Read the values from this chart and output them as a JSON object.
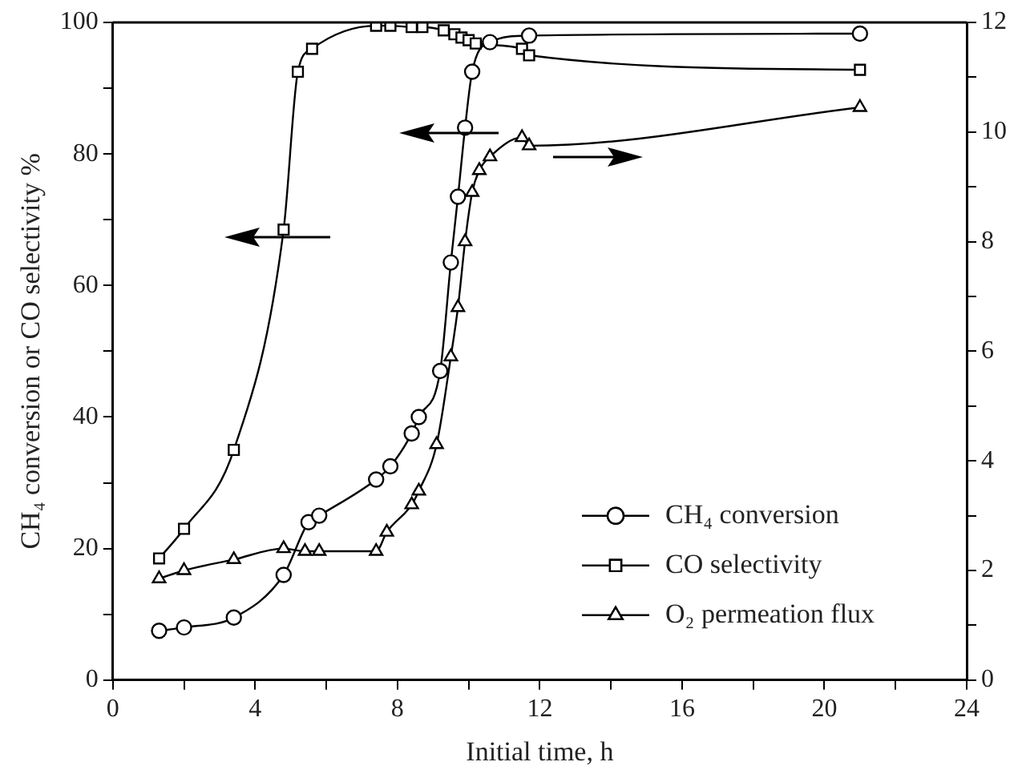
{
  "chart_data": {
    "type": "line",
    "xlabel": "Initial time, h",
    "ylabel": "CH₄ conversion or CO selectivity %",
    "xlim": [
      0,
      24
    ],
    "xticks": [
      0,
      {
        "value": 2,
        "label": null
      },
      4,
      {
        "value": 6,
        "label": null
      },
      8,
      {
        "value": 10,
        "label": null
      },
      12,
      {
        "value": 14,
        "label": null
      },
      16,
      {
        "value": 18,
        "label": null
      },
      20,
      {
        "value": 22,
        "label": null
      },
      24
    ],
    "ylim": [
      0,
      100
    ],
    "yticks": [
      0,
      {
        "value": 10,
        "label": null
      },
      20,
      {
        "value": 30,
        "label": null
      },
      40,
      {
        "value": 50,
        "label": null
      },
      60,
      {
        "value": 70,
        "label": null
      },
      80,
      {
        "value": 90,
        "label": null
      },
      100
    ],
    "y2lim": [
      0,
      12
    ],
    "y2ticks": [
      0,
      {
        "value": 1,
        "label": null
      },
      2,
      {
        "value": 3,
        "label": null
      },
      4,
      {
        "value": 5,
        "label": null
      },
      6,
      {
        "value": 7,
        "label": null
      },
      8,
      {
        "value": 9,
        "label": null
      },
      10,
      {
        "value": 11,
        "label": null
      },
      12
    ],
    "grid": false,
    "legend": "bottom right",
    "series": [
      {
        "name": "CH₄ conversion",
        "color": "#000000",
        "marker": "circle",
        "x": [
          1.3,
          2,
          3.4,
          4.8,
          5.5,
          5.8,
          7.4,
          7.8,
          8.4,
          8.6,
          9.2,
          9.5,
          9.7,
          9.9,
          10.1,
          10.6,
          11.7,
          21
        ],
        "values": [
          7.5,
          8,
          9.5,
          16,
          24,
          25,
          30.5,
          32.5,
          37.5,
          40,
          47,
          63.5,
          73.5,
          84,
          92.5,
          97,
          98,
          98.3
        ]
      },
      {
        "name": "CO selectivity",
        "color": "#000000",
        "marker": "square",
        "x": [
          1.3,
          2,
          3.4,
          4.8,
          5.2,
          5.6,
          7.4,
          7.8,
          8.4,
          8.7,
          9.3,
          9.6,
          9.8,
          10,
          10.2,
          11.5,
          11.7,
          21
        ],
        "values": [
          18.5,
          23,
          35,
          68.5,
          92.5,
          96,
          99.5,
          99.5,
          99.3,
          99.3,
          98.8,
          98.2,
          97.7,
          97.3,
          96.8,
          96,
          95,
          92.8
        ]
      },
      {
        "name": "O₂ permeation flux",
        "color": "#000000",
        "marker": "triangle",
        "axis": "y2",
        "x": [
          1.3,
          2,
          3.4,
          4.8,
          5.4,
          5.8,
          7.4,
          7.7,
          8.4,
          8.6,
          9.1,
          9.5,
          9.7,
          9.9,
          10.1,
          10.3,
          10.6,
          11.5,
          11.7,
          21
        ],
        "values": [
          1.85,
          2.0,
          2.2,
          2.4,
          2.35,
          2.35,
          2.35,
          2.7,
          3.2,
          3.45,
          4.3,
          5.9,
          6.8,
          8.0,
          8.9,
          9.3,
          9.55,
          9.9,
          9.75,
          10.45
        ]
      }
    ]
  }
}
